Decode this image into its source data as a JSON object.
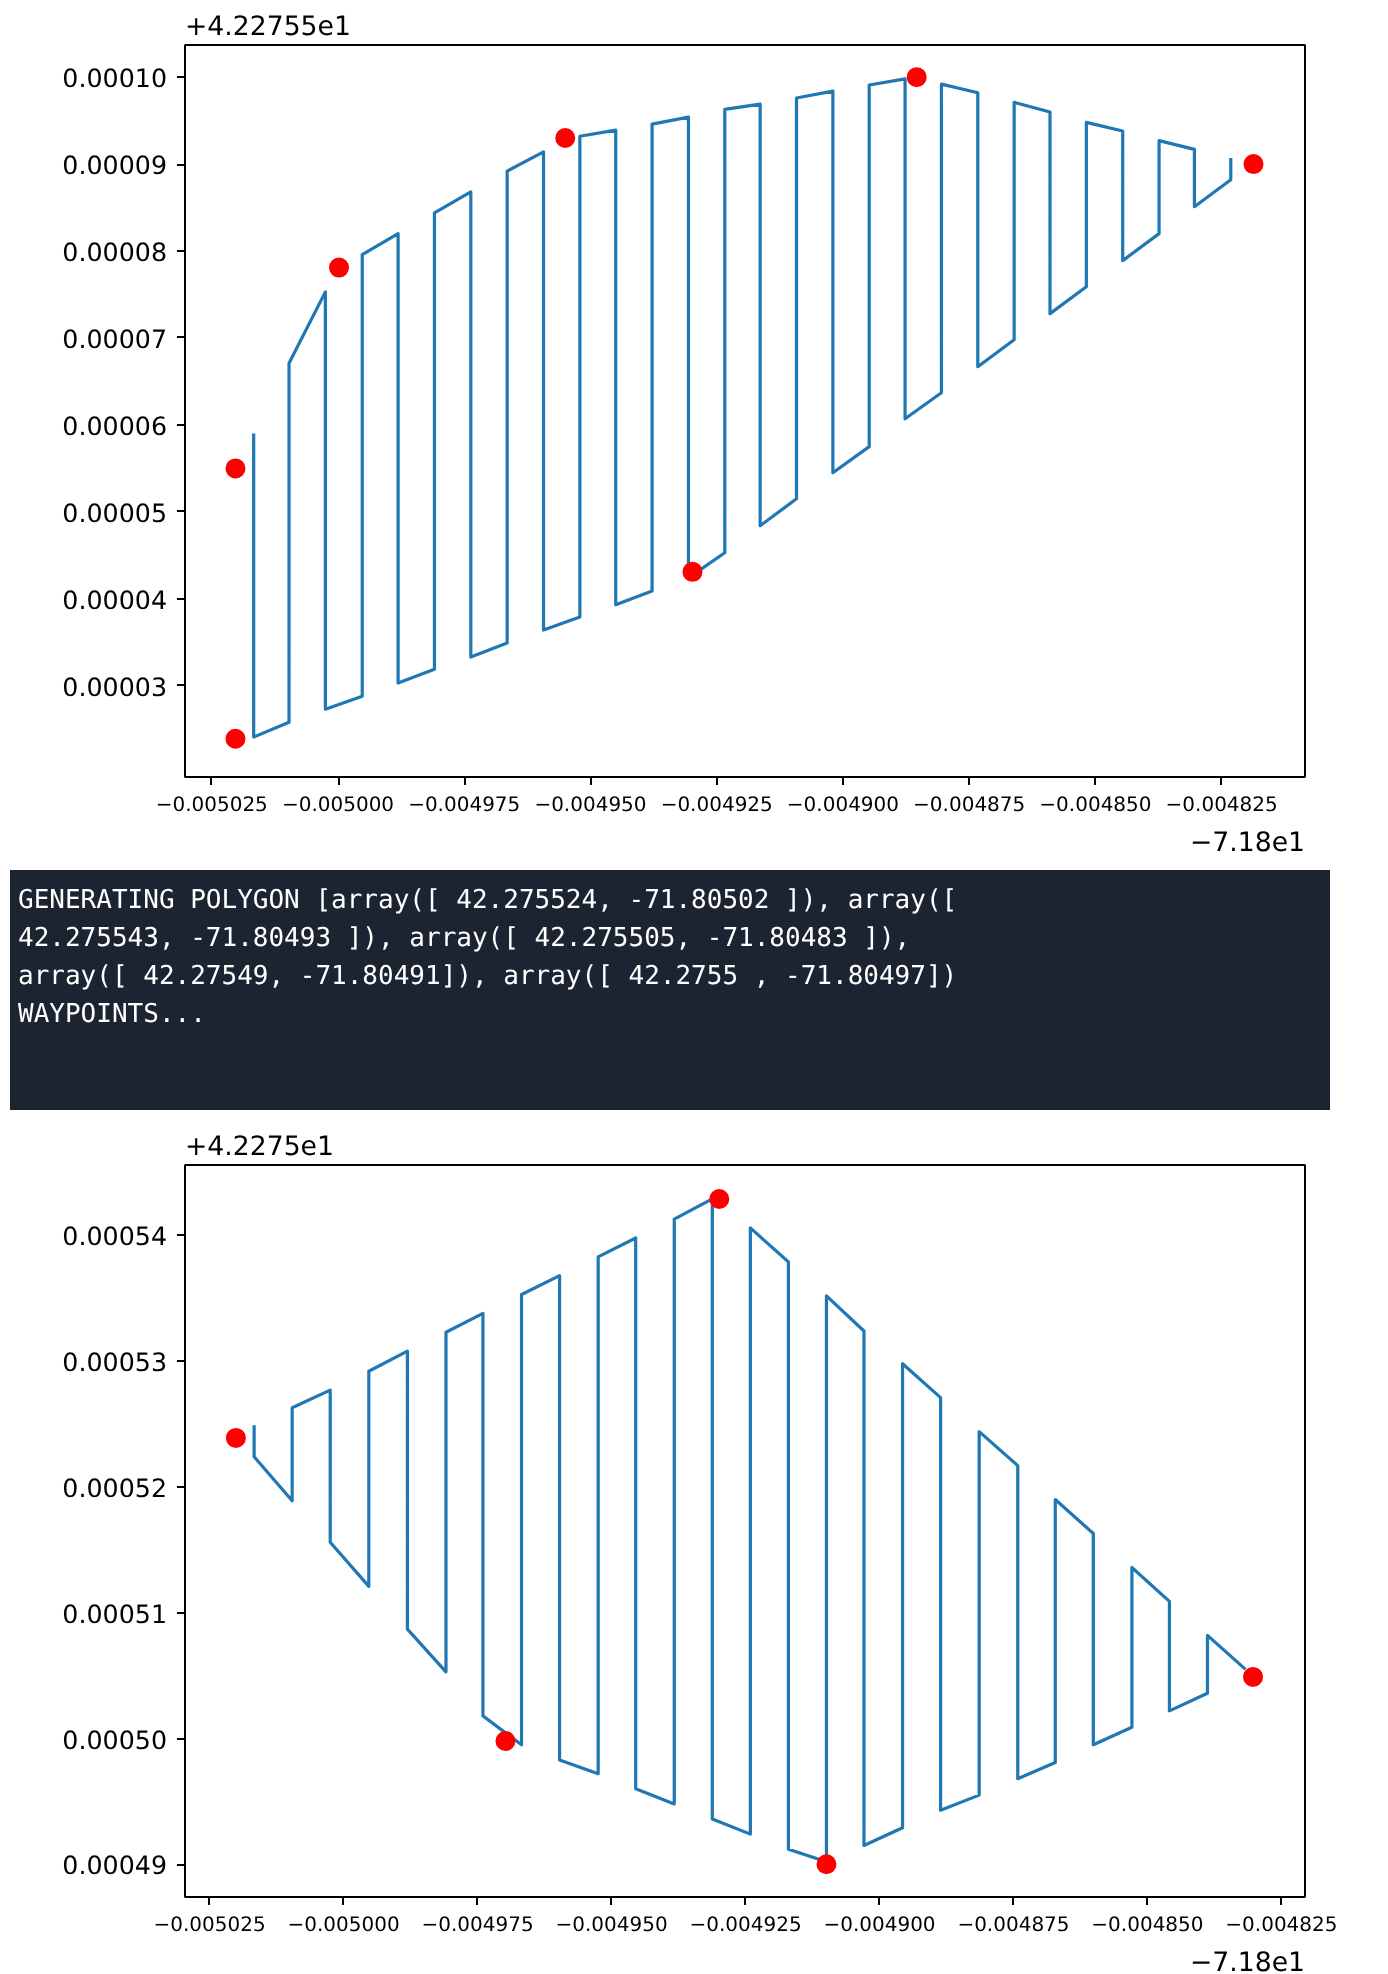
{
  "chart_data": [
    {
      "type": "line",
      "annotations": [
        "+4.22755e1",
        "−7.18e1"
      ],
      "xlim": [
        -0.0050303,
        -0.0048085
      ],
      "ylim": [
        1.95e-05,
        0.0001037
      ],
      "xticks": [
        {
          "value": -0.005025,
          "label": "−0.005025"
        },
        {
          "value": -0.005,
          "label": "−0.005000"
        },
        {
          "value": -0.004975,
          "label": "−0.004975"
        },
        {
          "value": -0.00495,
          "label": "−0.004950"
        },
        {
          "value": -0.004925,
          "label": "−0.004925"
        },
        {
          "value": -0.0049,
          "label": "−0.004900"
        },
        {
          "value": -0.004875,
          "label": "−0.004875"
        },
        {
          "value": -0.00485,
          "label": "−0.004850"
        },
        {
          "value": -0.004825,
          "label": "−0.004825"
        }
      ],
      "yticks": [
        {
          "value": 3e-05,
          "label": "0.00003"
        },
        {
          "value": 4e-05,
          "label": "0.00004"
        },
        {
          "value": 5e-05,
          "label": "0.00005"
        },
        {
          "value": 6e-05,
          "label": "0.00006"
        },
        {
          "value": 7e-05,
          "label": "0.00007"
        },
        {
          "value": 8e-05,
          "label": "0.00008"
        },
        {
          "value": 9e-05,
          "label": "0.00009"
        },
        {
          "value": 0.0001,
          "label": "0.00010"
        }
      ],
      "series": [
        {
          "type": "line",
          "color": "#1f77b4",
          "x": [
            -0.0050167,
            -0.0050167,
            -0.0050097,
            -0.0050097,
            -0.0050025,
            -0.0050025,
            -0.0049952,
            -0.0049952,
            -0.0049881,
            -0.0049881,
            -0.0049809,
            -0.0049809,
            -0.0049737,
            -0.0049737,
            -0.0049665,
            -0.0049665,
            -0.0049593,
            -0.0049593,
            -0.0049521,
            -0.0049521,
            -0.004945,
            -0.004945,
            -0.0049378,
            -0.0049378,
            -0.0049306,
            -0.0049306,
            -0.0049234,
            -0.0049234,
            -0.0049164,
            -0.0049164,
            -0.0049092,
            -0.0049092,
            -0.004902,
            -0.004902,
            -0.0048948,
            -0.0048948,
            -0.0048877,
            -0.0048877,
            -0.0048805,
            -0.0048805,
            -0.0048733,
            -0.0048733,
            -0.0048661,
            -0.0048661,
            -0.004859,
            -0.004859,
            -0.0048518,
            -0.0048518,
            -0.0048446,
            -0.0048446,
            -0.0048374,
            -0.0048374,
            -0.0048304,
            -0.0048304,
            -0.0048232,
            -0.0048232
          ],
          "values": [
            5.9e-05,
            2.41e-05,
            2.58e-05,
            6.71e-05,
            7.53e-05,
            2.73e-05,
            2.88e-05,
            7.96e-05,
            8.2e-05,
            3.03e-05,
            3.19e-05,
            8.44e-05,
            8.68e-05,
            3.33e-05,
            3.49e-05,
            8.92e-05,
            9.14e-05,
            3.64e-05,
            3.79e-05,
            9.32e-05,
            9.39e-05,
            3.93e-05,
            4.09e-05,
            9.46e-05,
            9.54e-05,
            4.24e-05,
            4.53e-05,
            9.63e-05,
            9.69e-05,
            4.84e-05,
            5.15e-05,
            9.76e-05,
            9.84e-05,
            5.45e-05,
            5.75e-05,
            9.91e-05,
            9.98e-05,
            6.07e-05,
            6.37e-05,
            9.92e-05,
            9.82e-05,
            6.67e-05,
            6.98e-05,
            9.71e-05,
            9.6e-05,
            7.28e-05,
            7.59e-05,
            9.48e-05,
            9.38e-05,
            7.89e-05,
            8.2e-05,
            9.27e-05,
            9.17e-05,
            8.51e-05,
            8.82e-05,
            9.07e-05
          ]
        },
        {
          "type": "scatter",
          "marker": "circle",
          "color": "#ff0000",
          "x": [
            -0.0050203,
            -0.0050203,
            -0.0049998,
            -0.004955,
            -0.0049298,
            -0.0048854,
            -0.0048187
          ],
          "values": [
            5.5e-05,
            2.39e-05,
            7.81e-05,
            9.3e-05,
            4.31e-05,
            0.0001,
            9e-05
          ]
        }
      ]
    },
    {
      "type": "other",
      "annotations": [
        "GENERATING POLYGON [array([ 42.275524, -71.80502 ]), array([",
        "42.275543, -71.80493 ]), array([ 42.275505, -71.80483 ]),",
        "array([ 42.27549, -71.80491]), array([ 42.2755 , -71.80497])",
        "WAYPOINTS..."
      ]
    },
    {
      "type": "line",
      "annotations": [
        "+4.2275e1",
        "−7.18e1"
      ],
      "xlim": [
        -0.0050296,
        -0.0048206
      ],
      "ylim": [
        0.0004874,
        0.0005456
      ],
      "xticks": [
        {
          "value": -0.005025,
          "label": "−0.005025"
        },
        {
          "value": -0.005,
          "label": "−0.005000"
        },
        {
          "value": -0.004975,
          "label": "−0.004975"
        },
        {
          "value": -0.00495,
          "label": "−0.004950"
        },
        {
          "value": -0.004925,
          "label": "−0.004925"
        },
        {
          "value": -0.0049,
          "label": "−0.004900"
        },
        {
          "value": -0.004875,
          "label": "−0.004875"
        },
        {
          "value": -0.00485,
          "label": "−0.004850"
        },
        {
          "value": -0.004825,
          "label": "−0.004825"
        }
      ],
      "yticks": [
        {
          "value": 0.00049,
          "label": "0.00049"
        },
        {
          "value": 0.0005,
          "label": "0.00050"
        },
        {
          "value": 0.00051,
          "label": "0.00051"
        },
        {
          "value": 0.00052,
          "label": "0.00052"
        },
        {
          "value": 0.00053,
          "label": "0.00053"
        },
        {
          "value": 0.00054,
          "label": "0.00054"
        }
      ],
      "series": [
        {
          "type": "line",
          "color": "#1f77b4",
          "x": [
            -0.0050167,
            -0.0050167,
            -0.0050096,
            -0.0050096,
            -0.0050025,
            -0.0050025,
            -0.0049953,
            -0.0049953,
            -0.0049881,
            -0.0049881,
            -0.0049809,
            -0.0049809,
            -0.004974,
            -0.004974,
            -0.0049668,
            -0.0049668,
            -0.0049597,
            -0.0049597,
            -0.0049525,
            -0.0049525,
            -0.0049455,
            -0.0049455,
            -0.0049383,
            -0.0049383,
            -0.0049312,
            -0.0049312,
            -0.0049241,
            -0.0049241,
            -0.004917,
            -0.004917,
            -0.0049099,
            -0.0049099,
            -0.0049029,
            -0.0049029,
            -0.0048957,
            -0.0048957,
            -0.0048886,
            -0.0048886,
            -0.0048814,
            -0.0048814,
            -0.0048742,
            -0.0048742,
            -0.0048672,
            -0.0048672,
            -0.0048601,
            -0.0048601,
            -0.0048529,
            -0.0048529,
            -0.0048459,
            -0.0048459,
            -0.0048388,
            -0.0048388,
            -0.0048317
          ],
          "values": [
            0.0005249,
            0.0005224,
            0.0005189,
            0.0005263,
            0.0005277,
            0.0005156,
            0.0005121,
            0.0005292,
            0.0005308,
            0.0005087,
            0.0005053,
            0.0005323,
            0.0005338,
            0.0005018,
            0.0004995,
            0.0005353,
            0.0005368,
            0.0004983,
            0.0004972,
            0.0005383,
            0.0005398,
            0.000496,
            0.0004948,
            0.0005413,
            0.0005429,
            0.0004936,
            0.0004924,
            0.0005406,
            0.0005379,
            0.0004912,
            0.0004902,
            0.0005352,
            0.0005324,
            0.0004915,
            0.0004929,
            0.0005298,
            0.0005271,
            0.0004943,
            0.0004955,
            0.0005244,
            0.0005217,
            0.0004968,
            0.0004981,
            0.000519,
            0.0005163,
            0.0004995,
            0.0005009,
            0.0005136,
            0.0005109,
            0.0005022,
            0.0005036,
            0.0005082,
            0.0005055
          ]
        },
        {
          "type": "scatter",
          "marker": "circle",
          "color": "#ff0000",
          "x": [
            -0.0050201,
            -0.0049698,
            -0.0049299,
            -0.0049099,
            -0.0048303
          ],
          "values": [
            0.0005239,
            0.0004998,
            0.0005429,
            0.00049,
            0.0005049
          ]
        }
      ]
    }
  ]
}
